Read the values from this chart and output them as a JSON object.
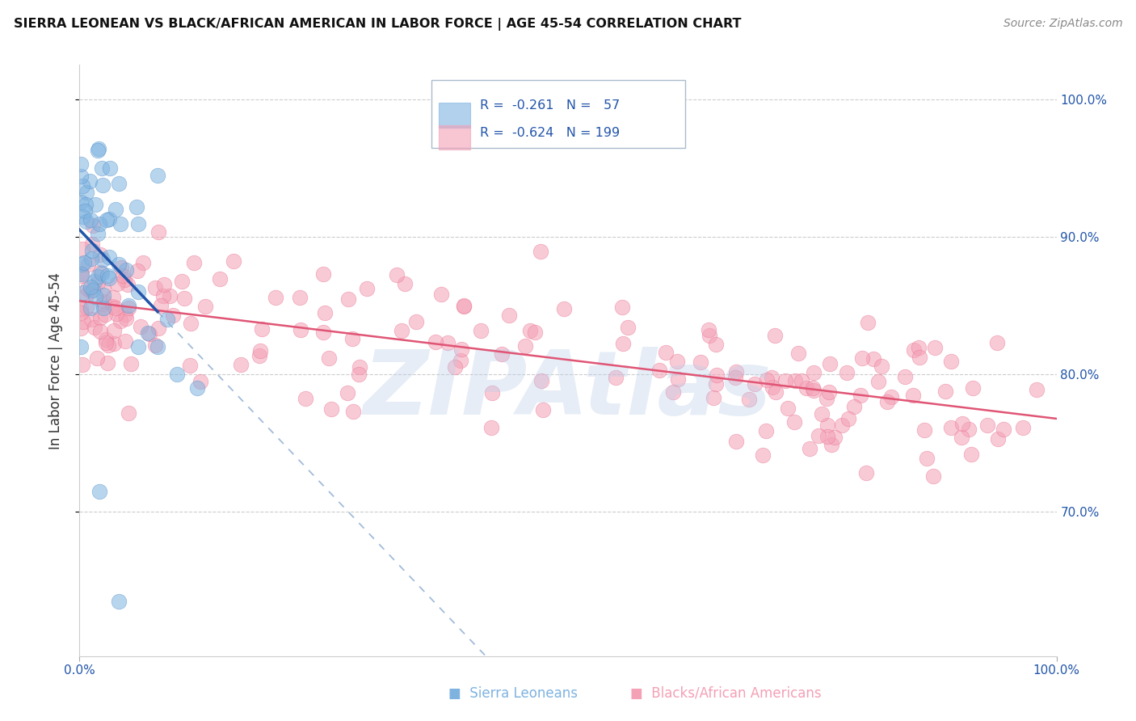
{
  "title": "SIERRA LEONEAN VS BLACK/AFRICAN AMERICAN IN LABOR FORCE | AGE 45-54 CORRELATION CHART",
  "source": "Source: ZipAtlas.com",
  "ylabel": "In Labor Force | Age 45-54",
  "xlim": [
    0.0,
    1.0
  ],
  "ylim": [
    0.595,
    1.025
  ],
  "yticks": [
    0.7,
    0.8,
    0.9,
    1.0
  ],
  "ytick_labels": [
    "70.0%",
    "80.0%",
    "90.0%",
    "100.0%"
  ],
  "watermark": "ZIPAtlas",
  "legend_blue_r": "-0.261",
  "legend_blue_n": "57",
  "legend_pink_r": "-0.624",
  "legend_pink_n": "199",
  "blue_color": "#7EB3E0",
  "pink_color": "#F4A0B5",
  "blue_marker_edge": "#5590C8",
  "pink_marker_edge": "#E87090",
  "blue_line_color": "#2255AA",
  "pink_line_color": "#E05575",
  "blue_dashed_color": "#8AAAD0",
  "background_color": "#FFFFFF",
  "grid_color": "#CCCCCC"
}
